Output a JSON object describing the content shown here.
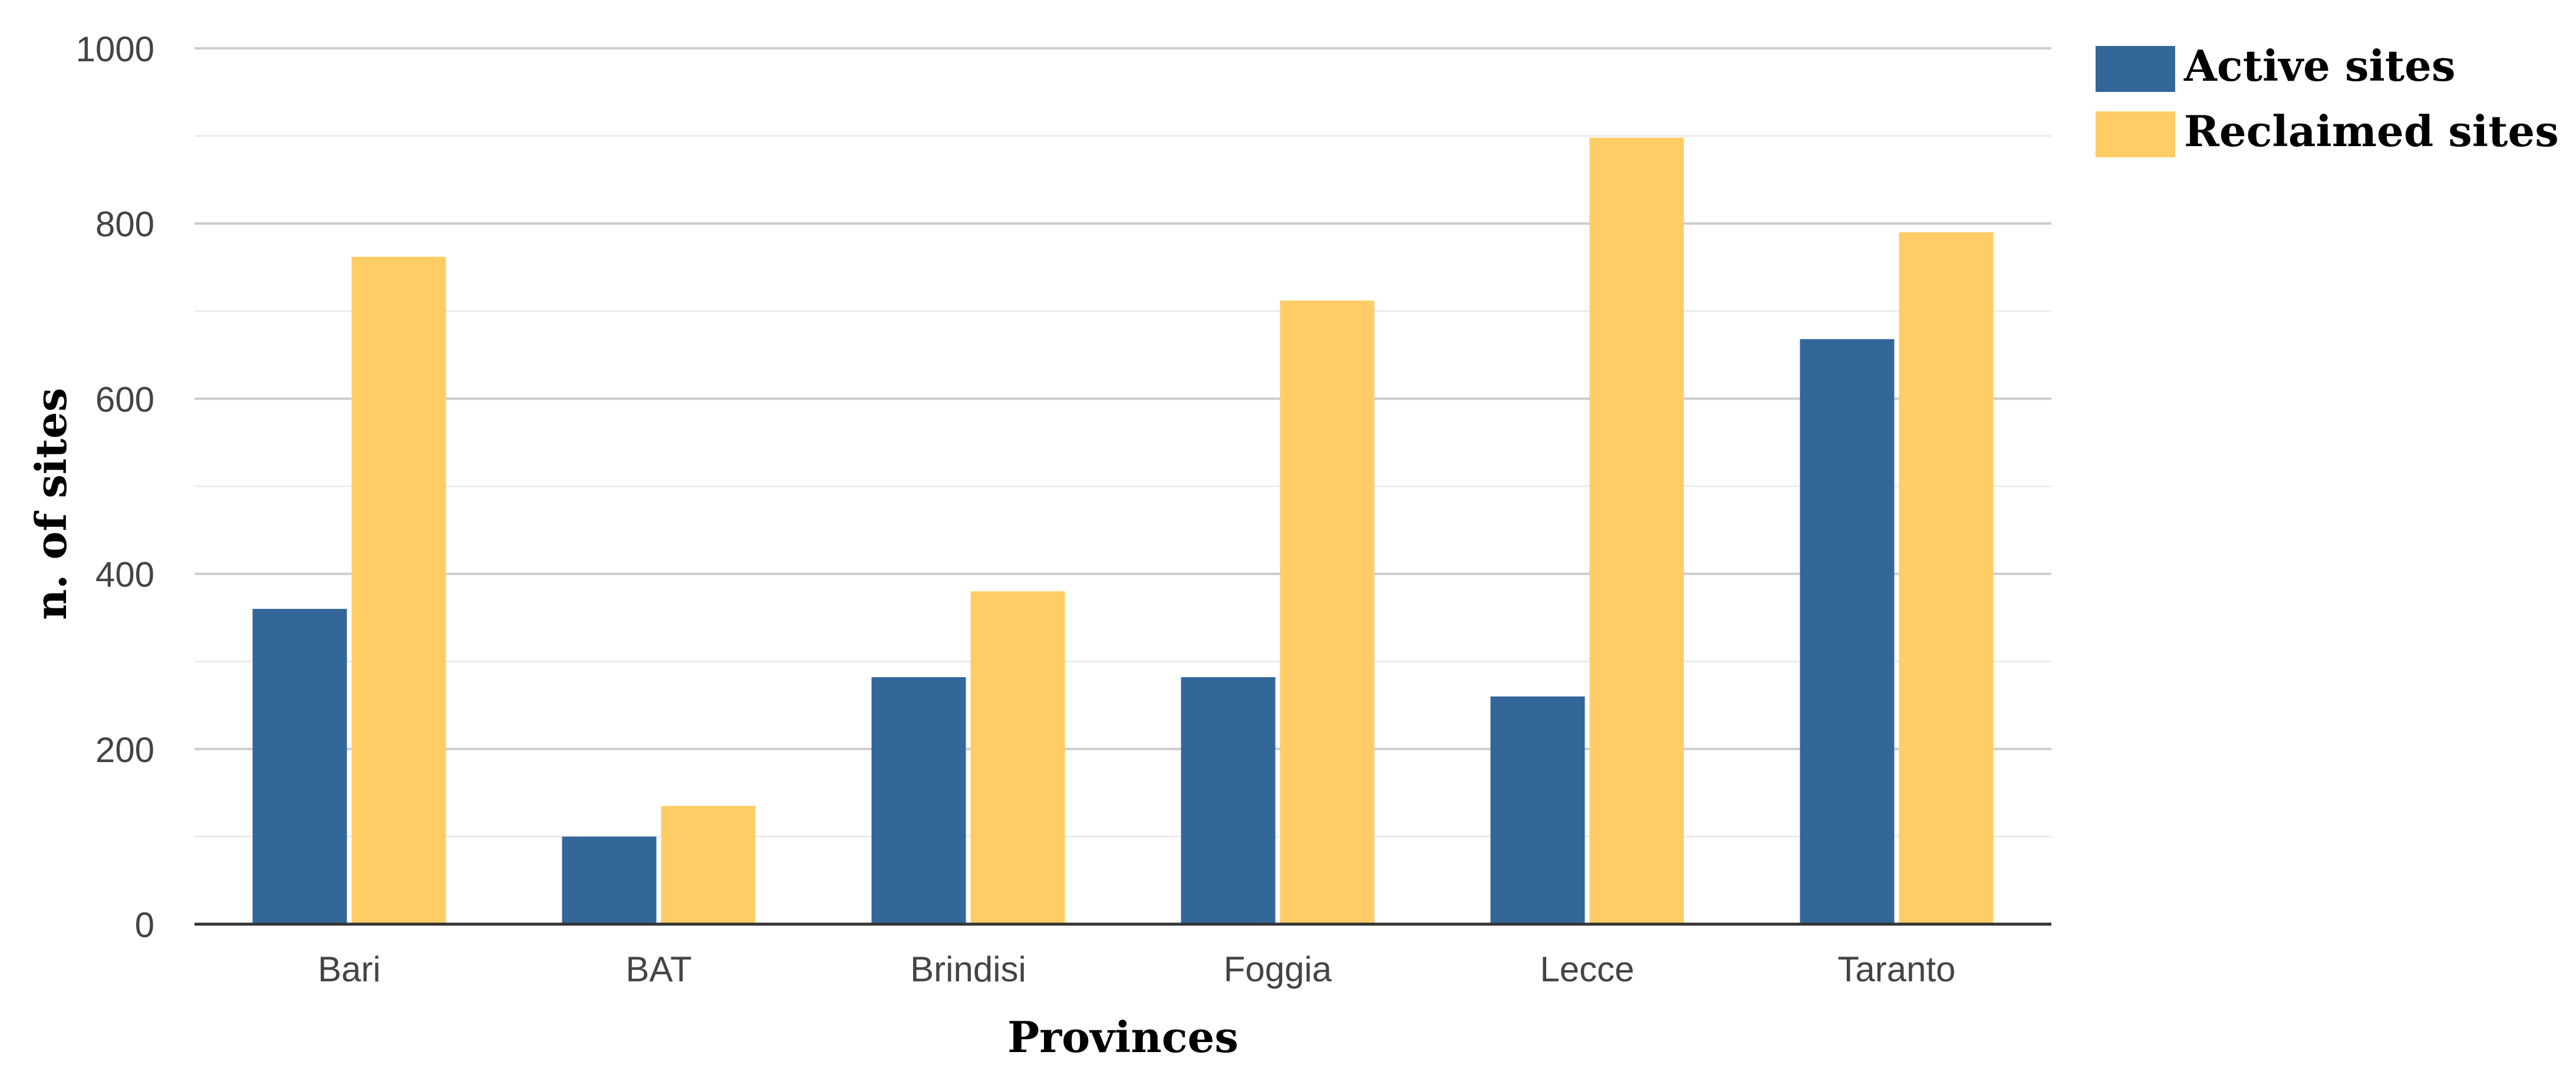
{
  "chart_data": {
    "type": "bar",
    "title": "",
    "xlabel": "Provinces",
    "ylabel": "n. of sites",
    "ylim": [
      0,
      1000
    ],
    "yticks": [
      0,
      200,
      400,
      600,
      800,
      1000
    ],
    "grid": true,
    "legend_position": "top-right",
    "categories": [
      "Bari",
      "BAT",
      "Brindisi",
      "Foggia",
      "Lecce",
      "Taranto"
    ],
    "series": [
      {
        "name": "Active sites",
        "color": "#336699",
        "values": [
          360,
          100,
          282,
          282,
          260,
          668
        ]
      },
      {
        "name": "Reclaimed sites",
        "color": "#FFCC66",
        "values": [
          762,
          135,
          380,
          712,
          898,
          790
        ]
      }
    ]
  }
}
